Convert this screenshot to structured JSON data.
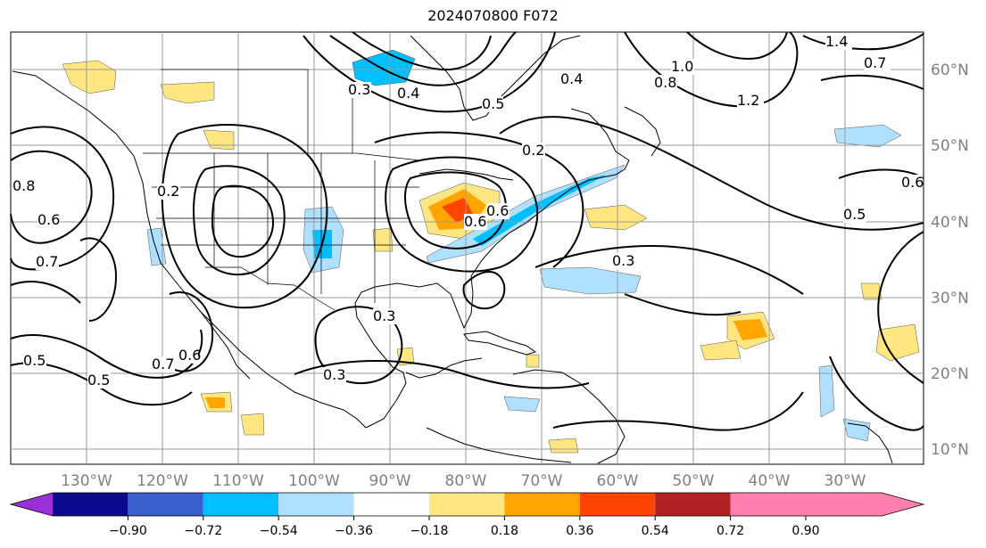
{
  "title": "2024070800 F072",
  "map": {
    "lon_labels": [
      "130°W",
      "120°W",
      "110°W",
      "100°W",
      "90°W",
      "80°W",
      "70°W",
      "60°W",
      "50°W",
      "40°W",
      "30°W"
    ],
    "lat_labels": [
      "60°N",
      "50°N",
      "40°N",
      "30°N",
      "20°N",
      "10°N"
    ],
    "contour_labels": [
      "0.3",
      "0.4",
      "0.5",
      "0.6",
      "0.7",
      "0.8",
      "1.0",
      "1.2",
      "1.4",
      "0.2",
      "0.6",
      "0.7",
      "0.8",
      "0.3",
      "0.5",
      "0.6",
      "0.3",
      "0.3",
      "0.2",
      "0.4",
      "0.5",
      "0.6",
      "0.7",
      "0.6",
      "0.5"
    ]
  },
  "colorbar": {
    "tick_labels": [
      "−0.90",
      "−0.72",
      "−0.54",
      "−0.36",
      "−0.18",
      "0.18",
      "0.36",
      "0.54",
      "0.72",
      "0.90"
    ],
    "colors": [
      "#9b30d9",
      "#0a0a8c",
      "#3a5fcd",
      "#00bfff",
      "#b0e0ff",
      "#ffffff",
      "#ffe680",
      "#ffa500",
      "#ff4500",
      "#b22222",
      "#ff7fae"
    ]
  }
}
